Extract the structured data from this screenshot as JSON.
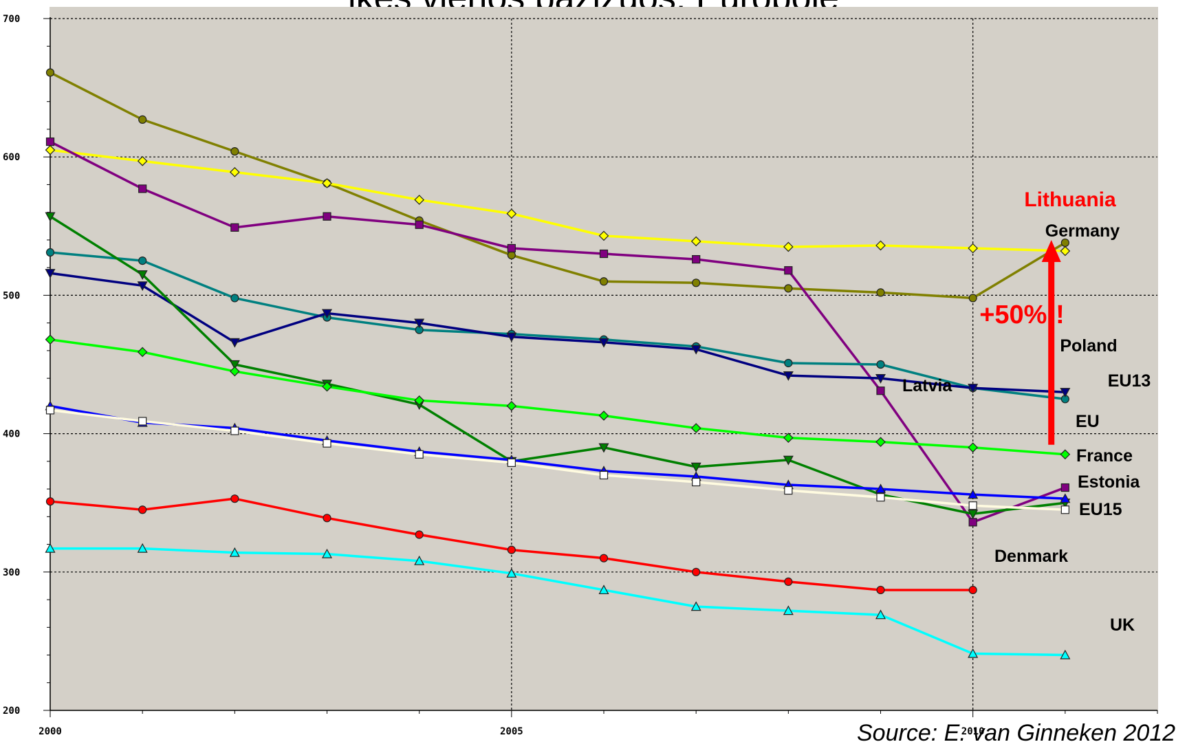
{
  "chart_data": {
    "type": "line",
    "title": "ikės vienos bazizuos, Europoje",
    "source": "Source: E. van Ginneken 2012",
    "xlim": [
      2000,
      2012
    ],
    "ylim": [
      200,
      700
    ],
    "x_ticks": [
      "2000",
      "2005",
      "2010"
    ],
    "y_ticks": [
      "200",
      "300",
      "400",
      "500",
      "600",
      "700"
    ],
    "grid": true,
    "background": "#d4d0c8",
    "x": [
      2000,
      2001,
      2002,
      2003,
      2004,
      2005,
      2006,
      2007,
      2008,
      2009,
      2010,
      2011
    ],
    "series": [
      {
        "key": "lithuania",
        "name": "Lithuania",
        "color": "#808000",
        "marker": "circle",
        "marker_fill": "#808000",
        "values": [
          661,
          627,
          604,
          581,
          554,
          529,
          510,
          509,
          505,
          502,
          498,
          538
        ]
      },
      {
        "key": "germany",
        "name": "Germany",
        "color": "#ffff00",
        "marker": "diamond",
        "marker_fill": "#ffff00",
        "values": [
          605,
          597,
          589,
          581,
          569,
          559,
          543,
          539,
          535,
          536,
          534,
          532
        ]
      },
      {
        "key": "latvia",
        "name": "Latvia",
        "color": "#800080",
        "marker": "square",
        "marker_fill": "#800080",
        "values": [
          611,
          577,
          549,
          557,
          551,
          534,
          530,
          526,
          518,
          431,
          336,
          361
        ]
      },
      {
        "key": "poland",
        "name": "Poland",
        "color": "#008080",
        "marker": "circle",
        "marker_fill": "#008080",
        "values": [
          531,
          525,
          498,
          484,
          475,
          472,
          468,
          463,
          451,
          450,
          433,
          425
        ]
      },
      {
        "key": "eu13",
        "name": "EU13",
        "color": "#000080",
        "marker": "triangle-down",
        "marker_fill": "#000080",
        "values": [
          516,
          507,
          466,
          487,
          480,
          470,
          466,
          461,
          442,
          440,
          433,
          430
        ]
      },
      {
        "key": "estonia",
        "name": "Estonia",
        "color": "#008000",
        "marker": "triangle-down",
        "marker_fill": "#008000",
        "values": [
          557,
          515,
          450,
          436,
          421,
          380,
          390,
          376,
          381,
          356,
          342,
          350
        ]
      },
      {
        "key": "eu",
        "name": "EU",
        "color": "#00ff00",
        "marker": "diamond",
        "marker_fill": "#00ff00",
        "values": [
          468,
          459,
          445,
          434,
          424,
          420,
          413,
          404,
          397,
          394,
          390,
          385
        ]
      },
      {
        "key": "eu15",
        "name": "EU15",
        "color": "#0000ff",
        "marker": "triangle",
        "marker_fill": "#0000ff",
        "values": [
          420,
          408,
          404,
          395,
          387,
          381,
          373,
          369,
          363,
          360,
          356,
          353
        ]
      },
      {
        "key": "france",
        "name": "France",
        "color": "#fffbe0",
        "marker": "square",
        "marker_fill": "#ffffff",
        "values": [
          417,
          409,
          402,
          393,
          385,
          379,
          370,
          365,
          359,
          354,
          348,
          345
        ]
      },
      {
        "key": "denmark",
        "name": "Denmark",
        "color": "#ff0000",
        "marker": "circle",
        "marker_fill": "#ff0000",
        "values": [
          351,
          345,
          353,
          339,
          327,
          316,
          310,
          300,
          293,
          287,
          287,
          null
        ]
      },
      {
        "key": "uk",
        "name": "UK",
        "color": "#00ffff",
        "marker": "triangle",
        "marker_fill": "#00ffff",
        "values": [
          317,
          317,
          314,
          313,
          308,
          299,
          287,
          275,
          272,
          269,
          241,
          240
        ]
      }
    ],
    "annotations": [
      {
        "key": "lithuania",
        "text": "Lithuania",
        "color": "#ff0000"
      },
      {
        "key": "germany",
        "text": "Germany",
        "color": "#000000"
      },
      {
        "key": "plus50",
        "text": "+50%!!",
        "color": "#ff0000"
      },
      {
        "key": "poland",
        "text": "Poland",
        "color": "#000000"
      },
      {
        "key": "eu13",
        "text": "EU13",
        "color": "#000000"
      },
      {
        "key": "latvia",
        "text": "Latvia",
        "color": "#000000"
      },
      {
        "key": "eu",
        "text": "EU",
        "color": "#000000"
      },
      {
        "key": "france",
        "text": "France",
        "color": "#000000"
      },
      {
        "key": "estonia",
        "text": "Estonia",
        "color": "#000000"
      },
      {
        "key": "eu15",
        "text": "EU15",
        "color": "#000000"
      },
      {
        "key": "denmark",
        "text": "Denmark",
        "color": "#000000"
      },
      {
        "key": "uk",
        "text": "UK",
        "color": "#000000"
      }
    ],
    "arrow": {
      "from_value": 392,
      "to_value": 538,
      "x": 2010.85,
      "color": "#ff0000"
    }
  }
}
